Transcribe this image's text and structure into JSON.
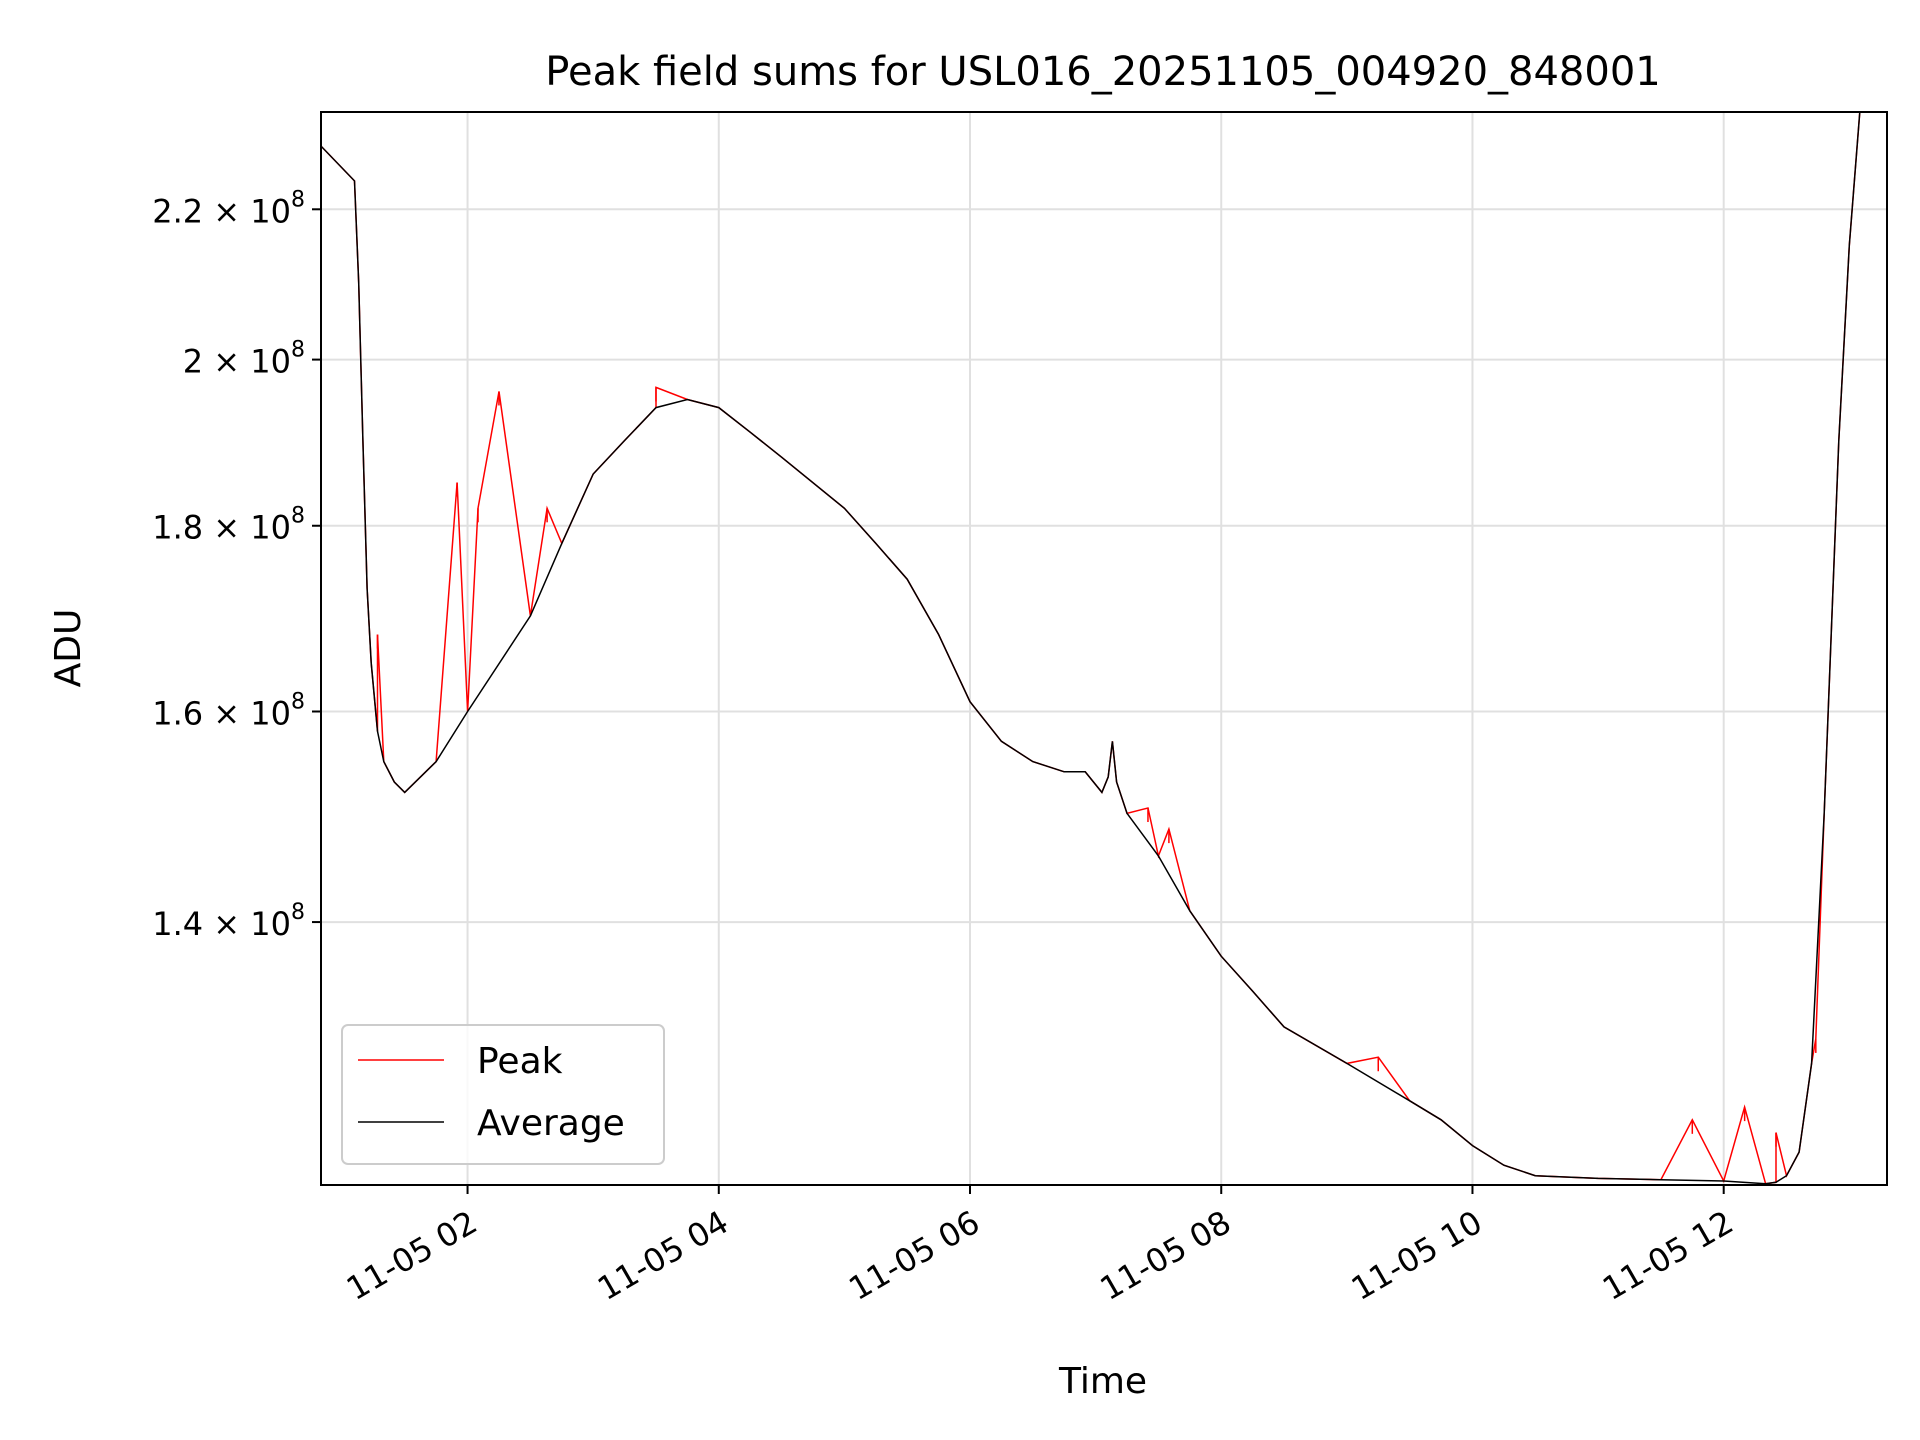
{
  "chart_data": {
    "type": "line",
    "title": "Peak field sums for USL016_20251105_004920_848001",
    "xlabel": "Time",
    "ylabel": "ADU",
    "y_scale": "log",
    "xlim": [
      "2025-11-05 00:50",
      "2025-11-05 13:18"
    ],
    "ylim": [
      118500000,
      234000000
    ],
    "x_ticks": [
      "11-05 02",
      "11-05 04",
      "11-05 06",
      "11-05 08",
      "11-05 10",
      "11-05 12"
    ],
    "y_ticks": [
      {
        "value": 140000000,
        "mantissa": "1.4",
        "base": "10",
        "exp": "8"
      },
      {
        "value": 160000000,
        "mantissa": "1.6",
        "base": "10",
        "exp": "8"
      },
      {
        "value": 180000000,
        "mantissa": "1.8",
        "base": "10",
        "exp": "8"
      },
      {
        "value": 200000000,
        "mantissa": "2",
        "base": "10",
        "exp": "8"
      },
      {
        "value": 220000000,
        "mantissa": "2.2",
        "base": "10",
        "exp": "8"
      }
    ],
    "grid": true,
    "legend_position": "lower-left",
    "series": [
      {
        "name": "Average",
        "color": "#000000",
        "x": [
          "2025-11-05 00:50",
          "2025-11-05 01:06",
          "2025-11-05 01:08",
          "2025-11-05 01:10",
          "2025-11-05 01:12",
          "2025-11-05 01:14",
          "2025-11-05 01:17",
          "2025-11-05 01:20",
          "2025-11-05 01:25",
          "2025-11-05 01:30",
          "2025-11-05 01:45",
          "2025-11-05 02:00",
          "2025-11-05 02:30",
          "2025-11-05 02:45",
          "2025-11-05 03:00",
          "2025-11-05 03:15",
          "2025-11-05 03:30",
          "2025-11-05 03:45",
          "2025-11-05 04:00",
          "2025-11-05 04:15",
          "2025-11-05 04:30",
          "2025-11-05 05:00",
          "2025-11-05 05:15",
          "2025-11-05 05:30",
          "2025-11-05 05:45",
          "2025-11-05 06:00",
          "2025-11-05 06:15",
          "2025-11-05 06:30",
          "2025-11-05 06:45",
          "2025-11-05 06:55",
          "2025-11-05 07:03",
          "2025-11-05 07:06",
          "2025-11-05 07:08",
          "2025-11-05 07:10",
          "2025-11-05 07:15",
          "2025-11-05 07:30",
          "2025-11-05 07:45",
          "2025-11-05 08:00",
          "2025-11-05 08:15",
          "2025-11-05 08:30",
          "2025-11-05 09:00",
          "2025-11-05 09:30",
          "2025-11-05 09:45",
          "2025-11-05 10:00",
          "2025-11-05 10:15",
          "2025-11-05 10:30",
          "2025-11-05 11:00",
          "2025-11-05 11:30",
          "2025-11-05 12:00",
          "2025-11-05 12:20",
          "2025-11-05 12:25",
          "2025-11-05 12:30",
          "2025-11-05 12:36",
          "2025-11-05 12:42",
          "2025-11-05 12:48",
          "2025-11-05 12:55",
          "2025-11-05 13:00",
          "2025-11-05 13:05"
        ],
        "y": [
          229000000,
          224000000,
          210000000,
          190000000,
          173000000,
          165000000,
          158000000,
          155000000,
          153000000,
          152000000,
          155000000,
          160000000,
          170000000,
          178000000,
          186000000,
          190000000,
          194000000,
          195000000,
          194000000,
          191000000,
          188000000,
          182000000,
          178000000,
          174000000,
          168000000,
          161000000,
          157000000,
          155000000,
          154000000,
          154000000,
          152000000,
          153500000,
          157000000,
          153000000,
          150000000,
          146000000,
          141000000,
          137000000,
          134000000,
          131000000,
          128000000,
          125000000,
          123500000,
          121500000,
          120000000,
          119200000,
          119000000,
          118900000,
          118800000,
          118600000,
          118700000,
          119200000,
          121000000,
          128000000,
          150000000,
          190000000,
          215000000,
          234000000
        ]
      },
      {
        "name": "Peak",
        "color": "#ff0000",
        "x": [
          "2025-11-05 01:17",
          "2025-11-05 01:55",
          "2025-11-05 02:05",
          "2025-11-05 02:15",
          "2025-11-05 02:38",
          "2025-11-05 03:30",
          "2025-11-05 07:25",
          "2025-11-05 07:35",
          "2025-11-05 09:15",
          "2025-11-05 11:45",
          "2025-11-05 12:10",
          "2025-11-05 12:25",
          "2025-11-05 12:44"
        ],
        "y": [
          168000000,
          185000000,
          182000000,
          196000000,
          182000000,
          196500000,
          150500000,
          148500000,
          128500000,
          123500000,
          124500000,
          122500000,
          130000000
        ]
      }
    ]
  }
}
